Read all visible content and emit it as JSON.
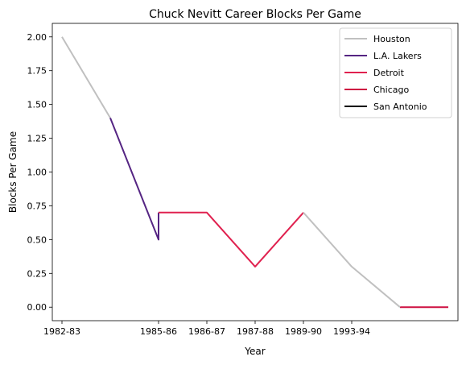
{
  "chart_data": {
    "type": "line",
    "title": "Chuck Nevitt Career Blocks Per Game",
    "xlabel": "Year",
    "ylabel": "Blocks Per Game",
    "x_tick_labels": [
      "1982-83",
      "1985-86",
      "1986-87",
      "1987-88",
      "1989-90",
      "1993-94"
    ],
    "x_tick_positions": [
      0,
      2,
      3,
      4,
      5,
      6
    ],
    "xlim": [
      -0.2,
      8.2
    ],
    "ylim": [
      -0.1,
      2.1
    ],
    "y_ticks": [
      0.0,
      0.25,
      0.5,
      0.75,
      1.0,
      1.25,
      1.5,
      1.75,
      2.0
    ],
    "y_tick_labels": [
      "0.00",
      "0.25",
      "0.50",
      "0.75",
      "1.00",
      "1.25",
      "1.50",
      "1.75",
      "2.00"
    ],
    "grid": false,
    "legend_position": "top-right",
    "series": [
      {
        "name": "Houston",
        "color": "#c0c0c0",
        "points": [
          [
            0,
            2.0
          ],
          [
            1,
            1.4
          ]
        ]
      },
      {
        "name": "L.A. Lakers",
        "color": "#552583",
        "points": [
          [
            1,
            1.4
          ],
          [
            2,
            0.5
          ],
          [
            2,
            0.7
          ]
        ]
      },
      {
        "name": "Detroit",
        "color": "#e0214f",
        "points": [
          [
            2,
            0.7
          ],
          [
            3,
            0.7
          ],
          [
            4,
            0.3
          ],
          [
            5,
            0.7
          ]
        ]
      },
      {
        "name": "Chicago",
        "color": "#ce1141",
        "points": [
          [
            7,
            0.0
          ],
          [
            8,
            0.0
          ]
        ]
      },
      {
        "name": "San Antonio",
        "color": "#000000",
        "points": []
      }
    ],
    "extra_segments": [
      {
        "series": "Houston",
        "points": [
          [
            5,
            0.7
          ],
          [
            6,
            0.3
          ],
          [
            7,
            0.0
          ]
        ]
      }
    ]
  }
}
